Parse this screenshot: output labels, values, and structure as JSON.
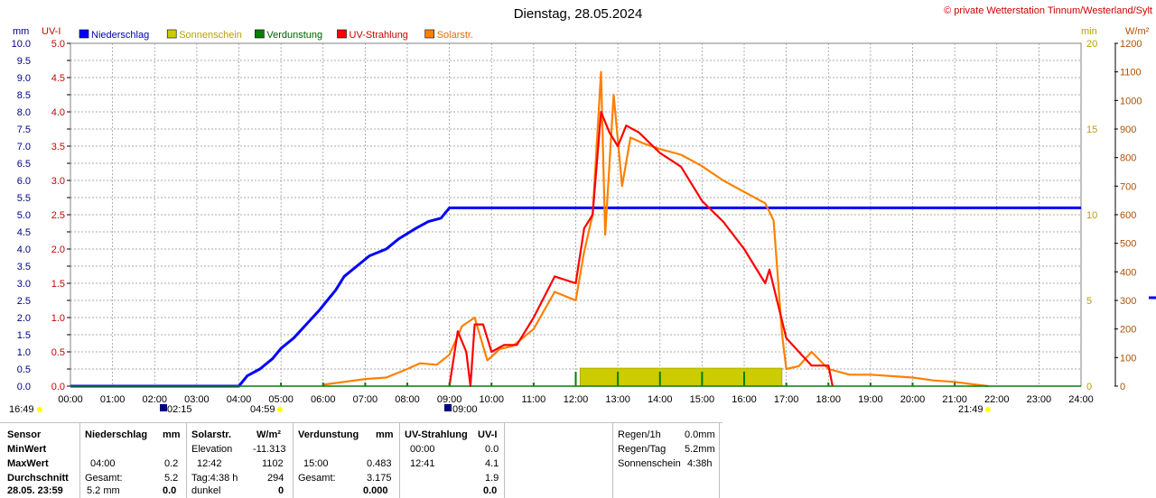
{
  "header": {
    "title": "Dienstag, 28.05.2024",
    "copyright": "© private Wetterstation Tinnum/Westerland/Sylt"
  },
  "axes": {
    "unit_mm": "mm",
    "unit_uv": "UV-I",
    "unit_min": "min",
    "unit_wm2": "W/m²",
    "mm_ticks": [
      "10.0",
      "9.5",
      "9.0",
      "8.5",
      "8.0",
      "7.5",
      "7.0",
      "6.5",
      "6.0",
      "5.5",
      "5.0",
      "4.5",
      "4.0",
      "3.5",
      "3.0",
      "2.5",
      "2.0",
      "1.5",
      "1.0",
      "0.5",
      "0.0"
    ],
    "uv_ticks": [
      "5.0",
      "4.5",
      "4.0",
      "3.5",
      "3.0",
      "2.5",
      "2.0",
      "1.5",
      "1.0",
      "0.5",
      "0.0"
    ],
    "min_ticks": [
      "20",
      "15",
      "10",
      "5",
      "0"
    ],
    "wm2_ticks": [
      "1200",
      "1100",
      "1000",
      "900",
      "800",
      "700",
      "600",
      "500",
      "400",
      "300",
      "200",
      "100",
      "0"
    ],
    "time_ticks": [
      "00:00",
      "01:00",
      "02:00",
      "03:00",
      "04:00",
      "05:00",
      "06:00",
      "07:00",
      "08:00",
      "09:00",
      "10:00",
      "11:00",
      "12:00",
      "13:00",
      "14:00",
      "15:00",
      "16:00",
      "17:00",
      "18:00",
      "19:00",
      "20:00",
      "21:00",
      "22:00",
      "23:00",
      "24:00"
    ]
  },
  "markers": {
    "moonrise": "16:49",
    "moonset": "02:15",
    "sunrise": "04:59",
    "tide1": "09:00",
    "sunset": "21:49"
  },
  "colors": {
    "rain": "#0000ff",
    "sunshine": "#cccc00",
    "evaporation": "#008000",
    "uv": "#ff0000",
    "solar": "#ff8000",
    "axis_left": "#000080",
    "axis_uv": "#cc0000",
    "axis_min": "#b8a000",
    "axis_wm2": "#b05000",
    "grid": "#808080"
  },
  "chart_data": {
    "type": "line",
    "title": "Dienstag, 28.05.2024",
    "xlim": [
      0,
      24
    ],
    "legend_position": "top-left",
    "legend": [
      {
        "label": "Niederschlag",
        "color": "#0000ff"
      },
      {
        "label": "Sonnenschein",
        "color": "#cccc00"
      },
      {
        "label": "Verdunstung",
        "color": "#008000"
      },
      {
        "label": "UV-Strahlung",
        "color": "#ff0000"
      },
      {
        "label": "Solarstr.",
        "color": "#ff8000"
      }
    ],
    "axes": {
      "mm": [
        0,
        10
      ],
      "uv": [
        0,
        5
      ],
      "min": [
        0,
        20
      ],
      "wm2": [
        0,
        1200
      ]
    },
    "series": [
      {
        "name": "Niederschlag",
        "axis": "mm",
        "x": [
          0,
          4.0,
          4.2,
          4.5,
          4.8,
          5.0,
          5.3,
          5.6,
          5.9,
          6.1,
          6.3,
          6.5,
          6.8,
          7.1,
          7.5,
          7.8,
          8.2,
          8.5,
          8.8,
          9.0,
          24
        ],
        "y": [
          0,
          0,
          0.3,
          0.5,
          0.8,
          1.1,
          1.4,
          1.8,
          2.2,
          2.5,
          2.8,
          3.2,
          3.5,
          3.8,
          4.0,
          4.3,
          4.6,
          4.8,
          4.9,
          5.2,
          5.2
        ]
      },
      {
        "name": "Solarstr.",
        "axis": "wm2",
        "x": [
          6.0,
          6.5,
          7.0,
          7.5,
          8.0,
          8.3,
          8.7,
          9.0,
          9.3,
          9.6,
          9.9,
          10.2,
          10.5,
          11.0,
          11.5,
          12.0,
          12.2,
          12.4,
          12.6,
          12.7,
          12.9,
          13.1,
          13.3,
          13.6,
          14.0,
          14.5,
          15.0,
          15.5,
          16.0,
          16.5,
          16.7,
          16.9,
          17.0,
          17.3,
          17.6,
          18.0,
          18.5,
          19.0,
          19.5,
          20.0,
          20.5,
          21.0,
          21.5,
          21.8
        ],
        "y": [
          5,
          15,
          25,
          30,
          60,
          80,
          75,
          110,
          210,
          240,
          90,
          130,
          140,
          200,
          330,
          300,
          470,
          600,
          1100,
          530,
          1020,
          700,
          870,
          850,
          830,
          810,
          770,
          720,
          680,
          640,
          580,
          180,
          60,
          70,
          120,
          60,
          40,
          40,
          35,
          30,
          20,
          15,
          5,
          0
        ]
      },
      {
        "name": "UV-Strahlung",
        "axis": "uv",
        "x": [
          9.0,
          9.2,
          9.4,
          9.5,
          9.6,
          9.8,
          10.0,
          10.3,
          10.6,
          11.0,
          11.5,
          12.0,
          12.2,
          12.4,
          12.6,
          12.8,
          13.0,
          13.2,
          13.5,
          14.0,
          14.5,
          15.0,
          15.5,
          16.0,
          16.5,
          16.6,
          16.8,
          17.0,
          17.3,
          17.6,
          18.0,
          18.1
        ],
        "y": [
          0,
          0.8,
          0.5,
          0,
          0.9,
          0.9,
          0.5,
          0.6,
          0.6,
          1.0,
          1.6,
          1.5,
          2.3,
          2.5,
          4.0,
          3.7,
          3.5,
          3.8,
          3.7,
          3.4,
          3.2,
          2.7,
          2.4,
          2.0,
          1.5,
          1.7,
          1.2,
          0.7,
          0.5,
          0.3,
          0.3,
          0
        ]
      },
      {
        "name": "Sonnenschein",
        "axis": "min",
        "type": "bar",
        "x_start": 12.1,
        "x_end": 16.9,
        "y": 1
      }
    ]
  },
  "stats": {
    "col_sensor": {
      "header": "Sensor",
      "rows": [
        "MinWert",
        "MaxWert",
        "Durchschnitt",
        "28.05. 23:59"
      ]
    },
    "col_rain": {
      "header": "Niederschlag",
      "unit": "mm",
      "rows": [
        [
          "",
          ""
        ],
        [
          "04:00",
          "0.2"
        ],
        [
          "Gesamt:",
          "5.2"
        ],
        [
          "5.2 mm",
          "0.0"
        ]
      ]
    },
    "col_solar": {
      "header": "Solarstr.",
      "unit": "W/m²",
      "rows": [
        [
          "Elevation",
          "-11.313"
        ],
        [
          "12:42",
          "1102"
        ],
        [
          "Tag:4:38 h",
          "294"
        ],
        [
          "dunkel",
          "0"
        ]
      ]
    },
    "col_evap": {
      "header": "Verdunstung",
      "unit": "mm",
      "rows": [
        [
          "",
          ""
        ],
        [
          "15:00",
          "0.483"
        ],
        [
          "Gesamt:",
          "3.175"
        ],
        [
          "",
          "0.000"
        ]
      ]
    },
    "col_uv": {
      "header": "UV-Strahlung",
      "unit": "UV-I",
      "rows": [
        [
          "00:00",
          "0.0"
        ],
        [
          "12:41",
          "4.1"
        ],
        [
          "",
          "1.9"
        ],
        [
          "",
          "0.0"
        ]
      ]
    },
    "summary": [
      {
        "label": "Regen/1h",
        "value": "0.0mm"
      },
      {
        "label": "Regen/Tag",
        "value": "5.2mm"
      },
      {
        "label": "Sonnenschein",
        "value": "4:38h"
      }
    ]
  }
}
